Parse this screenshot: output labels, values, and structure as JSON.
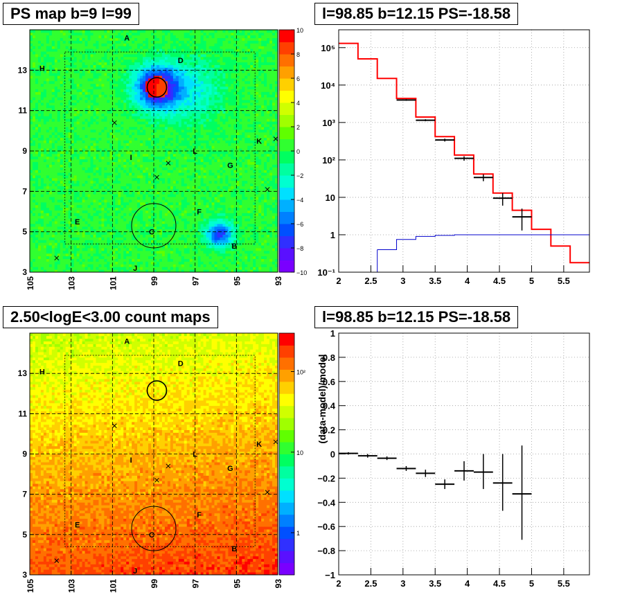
{
  "chart_data": [
    {
      "type": "heatmap",
      "title": "PS map b=9 l=99",
      "x_ticks": [
        "105",
        "103",
        "101",
        "99",
        "97",
        "95",
        "93"
      ],
      "y_ticks": [
        "3",
        "5",
        "7",
        "9",
        "11",
        "13"
      ],
      "xlim": [
        105,
        93
      ],
      "ylim": [
        3,
        15
      ],
      "colorbar": {
        "scale": "linear",
        "range": [
          -10,
          10
        ],
        "ticks": [
          "10",
          "8",
          "6",
          "4",
          "2",
          "0",
          "−2",
          "−4",
          "−6",
          "−8",
          "−10"
        ]
      },
      "region_labels": [
        "A",
        "D",
        "H",
        "K",
        "L",
        "I",
        "G",
        "F",
        "E",
        "C",
        "B",
        "J"
      ]
    },
    {
      "type": "line",
      "title": "l=98.85 b=12.15 PS=-18.58",
      "y_scale": "log",
      "xlim": [
        2,
        5.9
      ],
      "ylim": [
        0.1,
        300000
      ],
      "x_ticks": [
        "2",
        "2.5",
        "3",
        "3.5",
        "4",
        "4.5",
        "5",
        "5.5"
      ],
      "y_ticks": [
        "10⁻¹",
        "1",
        "10",
        "10²",
        "10³",
        "10⁴",
        "10⁵"
      ],
      "series": [
        {
          "style": "step",
          "color": "#ff0000",
          "edges": [
            2.0,
            2.3,
            2.6,
            2.9,
            3.2,
            3.5,
            3.8,
            4.1,
            4.4,
            4.7,
            5.0,
            5.3,
            5.6,
            5.9
          ],
          "values": [
            130000,
            50000,
            15000,
            4400,
            1400,
            420,
            135,
            42,
            13,
            4.5,
            1.4,
            0.5,
            0.18
          ]
        },
        {
          "style": "step",
          "color": "#0000cc",
          "edges": [
            2.6,
            2.9,
            3.2,
            3.5,
            3.8,
            5.9
          ],
          "values": [
            0.4,
            0.75,
            0.9,
            0.96,
            1.0
          ]
        },
        {
          "style": "errorbar",
          "color": "#000000",
          "x": [
            3.05,
            3.35,
            3.65,
            3.95,
            4.25,
            4.55,
            4.85
          ],
          "xerr": 0.15,
          "y": [
            4000,
            1150,
            340,
            110,
            34,
            9.5,
            3.0
          ],
          "ylow": [
            3800,
            1080,
            310,
            95,
            27,
            6,
            1.3
          ],
          "yhigh": [
            4200,
            1220,
            370,
            125,
            41,
            13,
            5.0
          ]
        }
      ]
    },
    {
      "type": "heatmap",
      "title": "2.50<logE<3.00 count maps",
      "x_ticks": [
        "105",
        "103",
        "101",
        "99",
        "97",
        "95",
        "93"
      ],
      "y_ticks": [
        "3",
        "5",
        "7",
        "9",
        "11",
        "13"
      ],
      "xlim": [
        105,
        93
      ],
      "ylim": [
        3,
        15
      ],
      "colorbar": {
        "scale": "log",
        "range": [
          0.3,
          300
        ],
        "ticks": [
          "10²",
          "10",
          "1"
        ]
      },
      "region_labels": [
        "A",
        "D",
        "H",
        "K",
        "L",
        "I",
        "G",
        "F",
        "E",
        "C",
        "B",
        "J"
      ]
    },
    {
      "type": "scatter",
      "title": "l=98.85 b=12.15 PS=-18.58",
      "ylabel": "(data-model)/model",
      "xlim": [
        2,
        5.9
      ],
      "ylim": [
        -1,
        1
      ],
      "x_ticks": [
        "2",
        "2.5",
        "3",
        "3.5",
        "4",
        "4.5",
        "5",
        "5.5"
      ],
      "y_ticks": [
        "1",
        "0.8",
        "0.6",
        "0.4",
        "0.2",
        "0",
        "−0.2",
        "−0.4",
        "−0.6",
        "−0.8",
        "−1"
      ],
      "series": [
        {
          "style": "errorbar",
          "color": "#000000",
          "x": [
            2.15,
            2.45,
            2.75,
            3.05,
            3.35,
            3.65,
            3.95,
            4.25,
            4.55,
            4.85
          ],
          "xerr": 0.15,
          "y": [
            0.005,
            -0.015,
            -0.035,
            -0.12,
            -0.16,
            -0.25,
            -0.14,
            -0.15,
            -0.24,
            -0.33
          ],
          "ylow": [
            -0.005,
            -0.03,
            -0.05,
            -0.14,
            -0.19,
            -0.29,
            -0.22,
            -0.29,
            -0.47,
            -0.71
          ],
          "yhigh": [
            0.015,
            0.0,
            -0.02,
            -0.1,
            -0.13,
            -0.21,
            -0.06,
            0.0,
            0.0,
            0.07
          ]
        }
      ]
    }
  ]
}
